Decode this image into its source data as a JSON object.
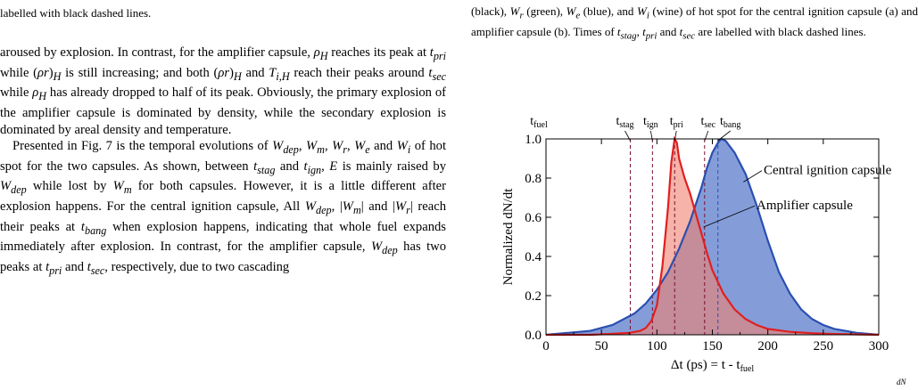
{
  "left_column": {
    "caption_fragment": "labelled with black dashed lines.",
    "paragraph1": "aroused by explosion. In contrast, for the amplifier capsule, ρ_H reaches its peak at t_pri while (ρr)_H is still increasing; and both (ρr)_H and T_i,H reach their peaks around t_sec while ρ_H has already dropped to half of its peak. Obviously, the primary explosion of the amplifier capsule is dominated by density, while the secondary explosion is dominated by areal density and temperature.",
    "paragraph2": "Presented in Fig. 7 is the temporal evolutions of W_dep, W_m, W_r, W_e and W_i of hot spot for the two capsules. As shown, between t_stag and t_ign, E is mainly raised by W_dep while lost by W_m for both capsules. However, it is a little different after explosion happens. For the central ignition capsule, All W_dep, |W_m| and |W_r| reach their peaks at t_bang when explosion happens, indicating that whole fuel expands immediately after explosion. In contrast, for the amplifier capsule, W_dep has two peaks at t_pri and t_sec, respectively, due to two cascading"
  },
  "right_column": {
    "caption_fragment": "(black), W_r (green), W_e (blue), and W_i (wine) of hot spot for the central ignition capsule (a) and amplifier capsule (b). Times of t_stag, t_pri and t_sec are labelled with black dashed lines."
  },
  "figure_tail": "dN",
  "chart_data": {
    "type": "area",
    "xlabel": "Δt (ps) = t - t_fuel",
    "ylabel": "Normalized dN/dt",
    "xlim": [
      0,
      300
    ],
    "ylim": [
      0,
      1.0
    ],
    "xticks": [
      0,
      50,
      100,
      150,
      200,
      250,
      300
    ],
    "yticks": [
      0.0,
      0.2,
      0.4,
      0.6,
      0.8,
      1.0
    ],
    "ytick_labels": [
      "0.0",
      "0.2",
      "0.4",
      "0.6",
      "0.8",
      "1.0"
    ],
    "grid": false,
    "series": [
      {
        "name": "Central ignition capsule",
        "line_color": "#2a4fb0",
        "fill_color": "#5b7ccc",
        "x": [
          0,
          20,
          40,
          60,
          80,
          90,
          100,
          110,
          120,
          130,
          140,
          145,
          150,
          155,
          158,
          162,
          170,
          180,
          190,
          200,
          210,
          220,
          230,
          240,
          250,
          260,
          270,
          280,
          290,
          300
        ],
        "y": [
          0.0,
          0.01,
          0.02,
          0.05,
          0.11,
          0.16,
          0.23,
          0.32,
          0.44,
          0.58,
          0.75,
          0.85,
          0.93,
          0.98,
          1.0,
          0.99,
          0.93,
          0.82,
          0.66,
          0.48,
          0.32,
          0.21,
          0.13,
          0.08,
          0.05,
          0.03,
          0.02,
          0.01,
          0.005,
          0.0
        ]
      },
      {
        "name": "Amplifier capsule",
        "line_color": "#e02020",
        "fill_color": "#f08070",
        "x": [
          0,
          40,
          60,
          75,
          85,
          90,
          95,
          100,
          105,
          110,
          113,
          116,
          118,
          120,
          125,
          130,
          135,
          140,
          145,
          150,
          160,
          170,
          180,
          190,
          200,
          220,
          240,
          260,
          300
        ],
        "y": [
          0.0,
          0.0,
          0.005,
          0.01,
          0.02,
          0.035,
          0.07,
          0.15,
          0.35,
          0.65,
          0.88,
          1.0,
          0.98,
          0.9,
          0.8,
          0.72,
          0.62,
          0.52,
          0.42,
          0.33,
          0.21,
          0.13,
          0.08,
          0.05,
          0.03,
          0.015,
          0.008,
          0.004,
          0.0
        ]
      }
    ],
    "time_markers": [
      {
        "label": "t_fuel",
        "x": 0,
        "line": "none"
      },
      {
        "label": "t_stag",
        "x": 76,
        "line": "dashed",
        "color": "#7a1030"
      },
      {
        "label": "t_ign",
        "x": 96,
        "line": "dashed",
        "color": "#7a1030"
      },
      {
        "label": "t_pri",
        "x": 116,
        "line": "dashed",
        "color": "#7a1030"
      },
      {
        "label": "t_sec",
        "x": 143,
        "line": "dashed",
        "color": "#7a1030"
      },
      {
        "label": "t_bang",
        "x": 155,
        "line": "dashed",
        "color": "#2a4fb0"
      }
    ],
    "annotations": [
      {
        "text": "Central ignition capsule",
        "arrow_to_x": 178,
        "arrow_to_y": 0.78
      },
      {
        "text": "Amplifier capsule",
        "arrow_to_x": 142,
        "arrow_to_y": 0.55
      }
    ]
  }
}
